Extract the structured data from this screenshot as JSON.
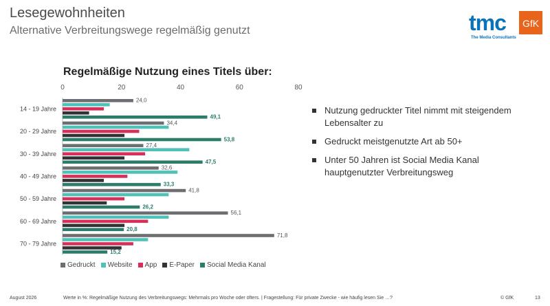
{
  "header": {
    "title": "Lesegewohnheiten",
    "subtitle": "Alternative Verbreitungswege regelmäßig genutzt"
  },
  "logo": {
    "tmc_text": "tmc",
    "tmc_tagline": "The Media Consultants",
    "gfk_text": "GfK",
    "colors": {
      "tmc": "#0a72b9",
      "gfk": "#e8641b"
    }
  },
  "bullets": [
    "Nutzung gedruckter Titel nimmt mit steigendem Lebensalter zu",
    "Gedruckt meistgenutzte Art ab 50+",
    "Unter 50 Jahren ist Social Media Kanal hauptgenutzter Verbreitungsweg"
  ],
  "footer": {
    "date": "August 2026",
    "note": "Werte in %: Regelmäßige Nutzung des Verbreitungswegs: Mehrmals pro Woche oder öfters. | Fragestellung: Für private Zwecke - wie häufig lesen Sie …?",
    "copyright": "© GfK",
    "page": "13"
  },
  "chart_data": {
    "type": "bar",
    "orientation": "horizontal",
    "title": "Regelmäßige Nutzung eines Titels über:",
    "categories": [
      "14 - 19 Jahre",
      "20 - 29 Jahre",
      "30 - 39 Jahre",
      "40 - 49 Jahre",
      "50 - 59 Jahre",
      "60 - 69 Jahre",
      "70 - 79 Jahre"
    ],
    "xlim": [
      0,
      80
    ],
    "xticks": [
      0,
      20,
      40,
      60,
      80
    ],
    "grid": false,
    "legend_position": "bottom",
    "series": [
      {
        "name": "Gedruckt",
        "color": "#6d6e71",
        "values": [
          24.0,
          34.4,
          27.4,
          32.6,
          41.8,
          56.1,
          71.8
        ],
        "labels": [
          "24,0",
          "34,4",
          "27,4",
          "32,6",
          "41,8",
          "56,1",
          "71,8"
        ]
      },
      {
        "name": "Website",
        "color": "#4fc1b8",
        "values": [
          16,
          36,
          43,
          39,
          36,
          36,
          29
        ],
        "labels": null
      },
      {
        "name": "App",
        "color": "#d6305a",
        "values": [
          14,
          26,
          28,
          22,
          21,
          29,
          24
        ],
        "labels": null
      },
      {
        "name": "E-Paper",
        "color": "#333333",
        "values": [
          9,
          21,
          21,
          14,
          15,
          21,
          20
        ],
        "labels": null
      },
      {
        "name": "Social Media Kanal",
        "color": "#2c7c6b",
        "values": [
          49.1,
          53.8,
          47.5,
          33.3,
          26.2,
          20.8,
          15.2
        ],
        "labels": [
          "49,1",
          "53,8",
          "47,5",
          "33,3",
          "26,2",
          "20,8",
          "15,2"
        ]
      }
    ]
  }
}
